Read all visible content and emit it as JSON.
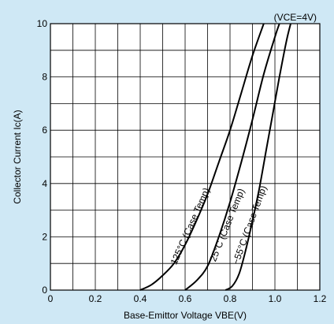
{
  "chart_data": {
    "type": "line",
    "condition": "(VCE=4V)",
    "xlabel": "Base-Emittor Voltage VBE(V)",
    "ylabel": "Collector Current Ic(A)",
    "xlim": [
      0,
      1.2
    ],
    "ylim": [
      0,
      10
    ],
    "x_ticks": [
      "0",
      "0.2",
      "0.4",
      "0.6",
      "0.8",
      "1.0",
      "1.2"
    ],
    "y_ticks": [
      "0",
      "2",
      "4",
      "6",
      "8",
      "10"
    ],
    "grid": true,
    "series": [
      {
        "name": "125°C (Case Temp)",
        "points": [
          [
            0.4,
            0.0
          ],
          [
            0.45,
            0.2
          ],
          [
            0.5,
            0.55
          ],
          [
            0.55,
            1.0
          ],
          [
            0.6,
            1.7
          ],
          [
            0.65,
            2.6
          ],
          [
            0.7,
            3.6
          ],
          [
            0.75,
            4.8
          ],
          [
            0.8,
            6.0
          ],
          [
            0.85,
            7.4
          ],
          [
            0.9,
            8.8
          ],
          [
            0.95,
            10.0
          ]
        ]
      },
      {
        "name": "25°C (Case Temp)",
        "points": [
          [
            0.6,
            0.0
          ],
          [
            0.65,
            0.35
          ],
          [
            0.7,
            0.9
          ],
          [
            0.75,
            2.0
          ],
          [
            0.8,
            3.3
          ],
          [
            0.85,
            4.8
          ],
          [
            0.9,
            6.4
          ],
          [
            0.95,
            8.1
          ],
          [
            1.0,
            9.5
          ],
          [
            1.02,
            10.0
          ]
        ]
      },
      {
        "name": "−55°C (Case Temp)",
        "points": [
          [
            0.78,
            0.0
          ],
          [
            0.81,
            0.15
          ],
          [
            0.84,
            0.6
          ],
          [
            0.87,
            1.5
          ],
          [
            0.9,
            2.6
          ],
          [
            0.93,
            3.8
          ],
          [
            0.96,
            5.2
          ],
          [
            0.99,
            6.6
          ],
          [
            1.02,
            8.0
          ],
          [
            1.05,
            9.3
          ],
          [
            1.07,
            10.0
          ]
        ]
      }
    ]
  }
}
